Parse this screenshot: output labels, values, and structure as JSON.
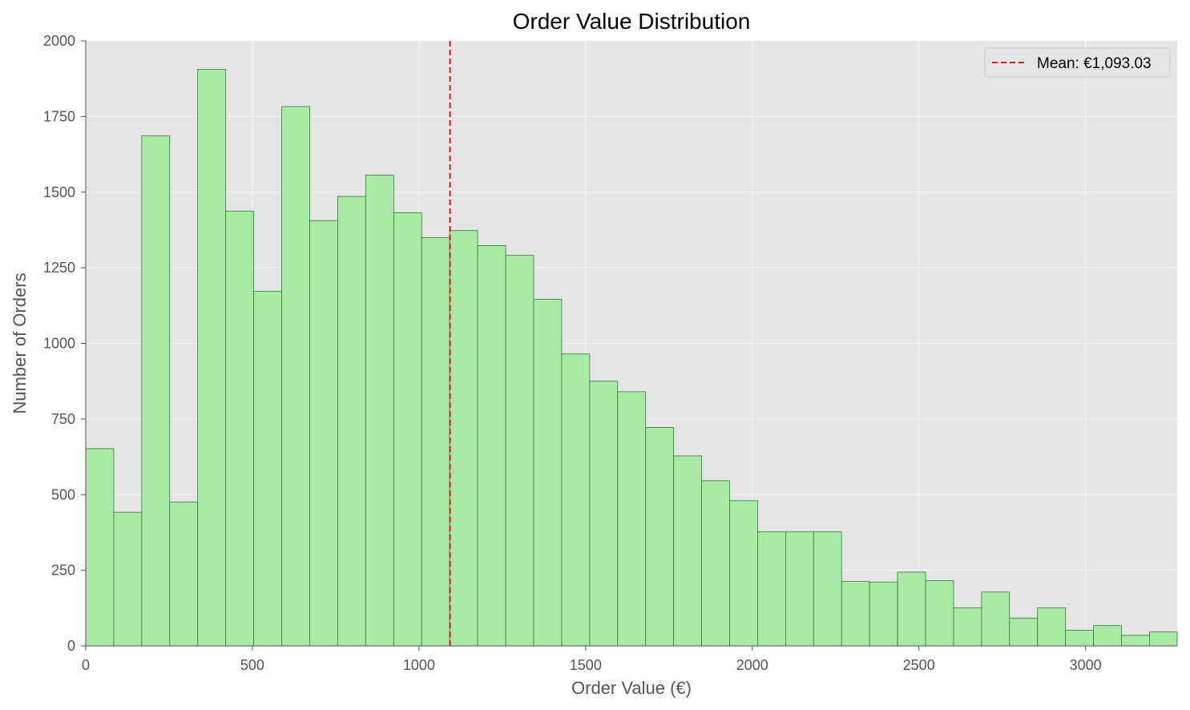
{
  "chart_data": {
    "type": "bar",
    "title": "Order Value Distribution",
    "xlabel": "Order Value (€)",
    "ylabel": "Number of Orders",
    "xlim": [
      0,
      3275
    ],
    "ylim": [
      0,
      2000
    ],
    "xticks": [
      0,
      500,
      1000,
      1500,
      2000,
      2500,
      3000
    ],
    "yticks": [
      0,
      250,
      500,
      750,
      1000,
      1250,
      1500,
      1750,
      2000
    ],
    "bin_width": 84,
    "bin_start": 0,
    "values": [
      652,
      442,
      1686,
      475,
      1906,
      1437,
      1172,
      1783,
      1406,
      1486,
      1556,
      1432,
      1350,
      1373,
      1323,
      1291,
      1146,
      965,
      875,
      840,
      722,
      628,
      546,
      480,
      377,
      377,
      377,
      213,
      211,
      244,
      216,
      126,
      178,
      92,
      126,
      52,
      67,
      35,
      46
    ],
    "mean": 1093.03,
    "legend": {
      "label": "Mean: €1,093.03",
      "placement": "upper right"
    },
    "grid": true,
    "colors": {
      "bar_fill": "#a9eba6",
      "bar_edge": "#2e7d32",
      "mean_line": "#e8141b",
      "plot_bg": "#e5e5e5",
      "grid": "#f2f2f2"
    }
  }
}
